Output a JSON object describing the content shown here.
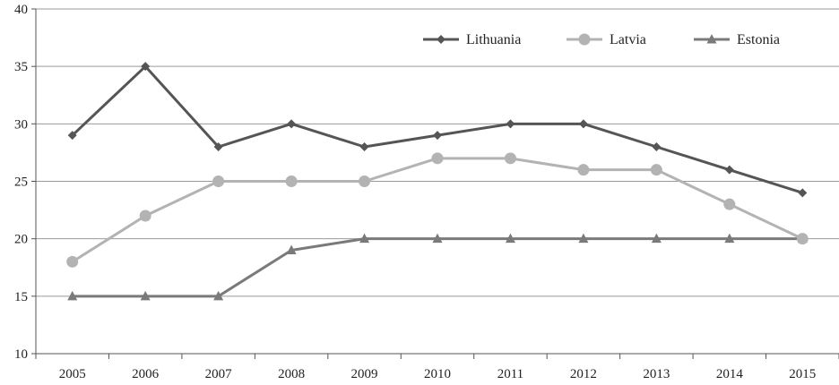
{
  "chart_data": {
    "type": "line",
    "title": "",
    "xlabel": "",
    "ylabel": "",
    "categories": [
      "2005",
      "2006",
      "2007",
      "2008",
      "2009",
      "2010",
      "2011",
      "2012",
      "2013",
      "2014",
      "2015"
    ],
    "ylim": [
      10,
      40
    ],
    "yticks": [
      10,
      15,
      20,
      25,
      30,
      35,
      40
    ],
    "grid": "horizontal",
    "legend_position": "top-right",
    "series": [
      {
        "name": "Lithuania",
        "values": [
          29,
          35,
          28,
          30,
          28,
          29,
          30,
          30,
          28,
          26,
          24
        ],
        "color": "#555555",
        "marker": "diamond"
      },
      {
        "name": "Latvia",
        "values": [
          18,
          22,
          25,
          25,
          25,
          27,
          27,
          26,
          26,
          23,
          20
        ],
        "color": "#b3b3b3",
        "marker": "circle"
      },
      {
        "name": "Estonia",
        "values": [
          15,
          15,
          15,
          19,
          20,
          20,
          20,
          20,
          20,
          20,
          20
        ],
        "color": "#7a7a7a",
        "marker": "triangle"
      }
    ]
  }
}
